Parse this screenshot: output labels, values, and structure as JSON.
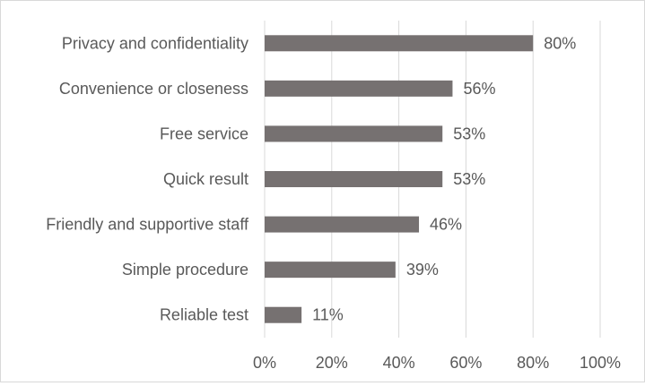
{
  "chart_data": {
    "type": "bar",
    "orientation": "horizontal",
    "categories": [
      "Privacy and confidentiality",
      "Convenience or closeness",
      "Free service",
      "Quick result",
      "Friendly and supportive staff",
      "Simple procedure",
      "Reliable test"
    ],
    "values": [
      80,
      56,
      53,
      53,
      46,
      39,
      11
    ],
    "value_labels": [
      "80%",
      "56%",
      "53%",
      "53%",
      "46%",
      "39%",
      "11%"
    ],
    "xlim": [
      0,
      100
    ],
    "x_ticks": [
      "0%",
      "20%",
      "40%",
      "60%",
      "80%",
      "100%"
    ],
    "grid": "vertical",
    "legend": "none",
    "bar_color": "#767171",
    "grid_color": "#d9d9d9",
    "text_color": "#595959"
  }
}
